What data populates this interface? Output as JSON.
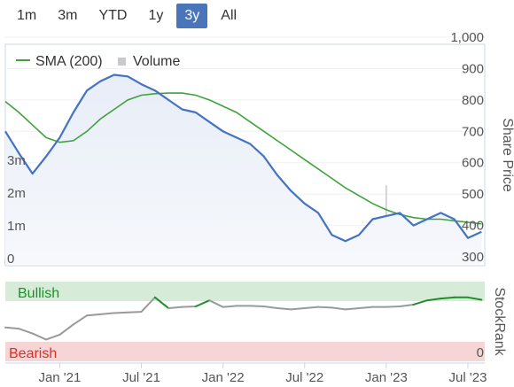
{
  "range_selector": {
    "buttons": [
      "1m",
      "3m",
      "YTD",
      "1y",
      "3y",
      "All"
    ],
    "active": "3y"
  },
  "colors": {
    "price": "#4472c4",
    "sma": "#3fa33a",
    "volume": "#c7c9cc",
    "stockrank": "#9a9a9a",
    "bullish": "#1f8f2a",
    "bearish": "#d9302c",
    "bullish_band": "#d7ecd8",
    "bearish_band": "#f5d5d5",
    "active_button": "#4b75b9"
  },
  "chart_data": [
    {
      "type": "line",
      "ylabel": "Share Price",
      "ylim": [
        300,
        1000
      ],
      "y_ticks": [
        "300",
        "400",
        "500",
        "600",
        "700",
        "800",
        "900",
        "1,000"
      ],
      "volume_axis_ticks": [
        "0",
        "1m",
        "2m",
        "3m"
      ],
      "x_ticks": [
        "Jan '21",
        "Jul '21",
        "Jan '22",
        "Jul '22",
        "Jan '23",
        "Jul '23"
      ],
      "legend": [
        "SMA (200)",
        "Volume"
      ],
      "legend_position": "top-left",
      "series": [
        {
          "name": "Share Price",
          "x": [
            "2020-09",
            "2020-10",
            "2020-11",
            "2020-12",
            "2021-01",
            "2021-02",
            "2021-03",
            "2021-04",
            "2021-05",
            "2021-06",
            "2021-07",
            "2021-08",
            "2021-09",
            "2021-10",
            "2021-11",
            "2021-12",
            "2022-01",
            "2022-02",
            "2022-03",
            "2022-04",
            "2022-05",
            "2022-06",
            "2022-07",
            "2022-08",
            "2022-09",
            "2022-10",
            "2022-11",
            "2022-12",
            "2023-01",
            "2023-02",
            "2023-03",
            "2023-04",
            "2023-05",
            "2023-06",
            "2023-07",
            "2023-08"
          ],
          "values": [
            700,
            630,
            565,
            620,
            680,
            760,
            830,
            860,
            880,
            875,
            850,
            830,
            800,
            770,
            760,
            730,
            700,
            680,
            660,
            620,
            560,
            510,
            470,
            440,
            370,
            350,
            370,
            420,
            430,
            440,
            400,
            420,
            440,
            420,
            360,
            380
          ]
        },
        {
          "name": "SMA (200)",
          "x": [
            "2020-09",
            "2020-10",
            "2020-11",
            "2020-12",
            "2021-01",
            "2021-02",
            "2021-03",
            "2021-04",
            "2021-05",
            "2021-06",
            "2021-07",
            "2021-08",
            "2021-09",
            "2021-10",
            "2021-11",
            "2021-12",
            "2022-01",
            "2022-02",
            "2022-03",
            "2022-04",
            "2022-05",
            "2022-06",
            "2022-07",
            "2022-08",
            "2022-09",
            "2022-10",
            "2022-11",
            "2022-12",
            "2023-01",
            "2023-02",
            "2023-03",
            "2023-04",
            "2023-05",
            "2023-06",
            "2023-07",
            "2023-08"
          ],
          "values": [
            795,
            760,
            720,
            680,
            665,
            670,
            700,
            740,
            770,
            800,
            815,
            820,
            822,
            822,
            815,
            800,
            780,
            760,
            730,
            700,
            670,
            640,
            610,
            580,
            550,
            520,
            495,
            470,
            450,
            435,
            425,
            420,
            420,
            415,
            410,
            405
          ]
        }
      ],
      "volume": {
        "x": [
          "2020-09",
          "2020-11",
          "2021-01",
          "2021-03",
          "2021-05",
          "2021-07",
          "2021-09",
          "2021-11",
          "2022-01",
          "2022-03",
          "2022-05",
          "2022-07",
          "2022-09",
          "2022-10",
          "2022-11",
          "2022-12",
          "2023-01",
          "2023-02",
          "2023-03",
          "2023-05",
          "2023-07"
        ],
        "values": [
          0.15,
          0.2,
          0.25,
          0.3,
          0.2,
          0.25,
          0.2,
          0.15,
          0.2,
          0.25,
          0.3,
          0.35,
          0.5,
          0.4,
          0.6,
          0.5,
          2.4,
          0.7,
          0.5,
          1.0,
          0.8
        ]
      }
    },
    {
      "type": "line",
      "ylabel": "StockRank",
      "ylim": [
        0,
        100
      ],
      "y_ticks": [
        "0"
      ],
      "bands": {
        "upper": "Bullish",
        "lower": "Bearish"
      },
      "series": [
        {
          "name": "StockRank",
          "x": [
            "2020-09",
            "2020-10",
            "2020-11",
            "2020-12",
            "2021-01",
            "2021-02",
            "2021-03",
            "2021-04",
            "2021-05",
            "2021-06",
            "2021-07",
            "2021-08",
            "2021-09",
            "2021-10",
            "2021-11",
            "2021-12",
            "2022-01",
            "2022-02",
            "2022-03",
            "2022-04",
            "2022-05",
            "2022-06",
            "2022-07",
            "2022-08",
            "2022-09",
            "2022-10",
            "2022-11",
            "2022-12",
            "2023-01",
            "2023-02",
            "2023-03",
            "2023-04",
            "2023-05",
            "2023-06",
            "2023-07",
            "2023-08"
          ],
          "values": [
            40,
            38,
            30,
            20,
            28,
            45,
            60,
            62,
            64,
            65,
            66,
            90,
            72,
            74,
            75,
            85,
            74,
            76,
            76,
            75,
            72,
            70,
            72,
            74,
            73,
            70,
            72,
            74,
            74,
            75,
            78,
            85,
            88,
            90,
            90,
            86
          ]
        }
      ]
    }
  ]
}
